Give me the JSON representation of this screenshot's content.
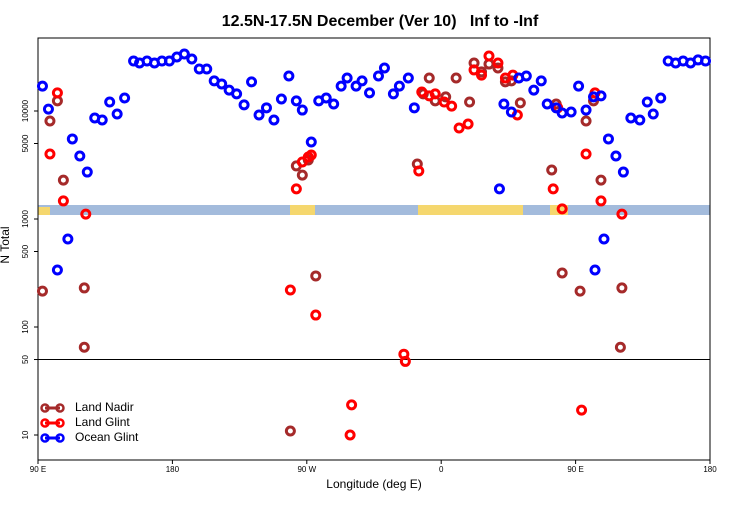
{
  "chart_data": {
    "type": "scatter",
    "title": "12.5N-17.5N December (Ver 10)   Inf to -Inf",
    "x_label": "Longitude (deg E)",
    "y_label": "N Total",
    "xlim": [
      90,
      540
    ],
    "ylim": [
      5.87,
      47400
    ],
    "log_y": true,
    "hline": 50,
    "legend": "lower left",
    "xticks": [
      {
        "value": 90,
        "label": "90 E"
      },
      180,
      {
        "value": 270,
        "label": "90 W"
      },
      {
        "value": 360,
        "label": "0"
      },
      {
        "value": 450,
        "label": "90 E"
      },
      {
        "value": 540,
        "label": "180"
      }
    ],
    "yticks": [
      10,
      50,
      100,
      500,
      1000,
      5000,
      10000
    ],
    "series": [
      {
        "name": "Land Nadir",
        "color": "#a52a2a",
        "x": [
          93,
          98,
          103,
          107,
          121,
          121,
          263,
          267,
          271,
          276,
          259,
          344,
          348,
          352,
          356,
          363,
          370,
          379,
          382,
          387,
          392,
          398,
          403,
          407,
          413,
          434,
          437,
          441,
          453,
          457,
          462,
          467,
          481,
          480
        ],
        "values": [
          215,
          8080,
          12400,
          2290,
          230,
          65,
          3100,
          2550,
          3520,
          297,
          10.9,
          3230,
          14400,
          20200,
          12400,
          13500,
          20200,
          12100,
          27800,
          23000,
          27200,
          25000,
          18600,
          19000,
          11900,
          2840,
          11600,
          316,
          215,
          8080,
          12400,
          2290,
          230,
          65
        ]
      },
      {
        "name": "Land Glint",
        "color": "#ff0000",
        "x": [
          98,
          103,
          107,
          122,
          263,
          267,
          271,
          273,
          345,
          347,
          352,
          356,
          362,
          367,
          372,
          378,
          382,
          387,
          392,
          398,
          403,
          408,
          411,
          438,
          435,
          441,
          457,
          463,
          467,
          481,
          259,
          276,
          335,
          336,
          300,
          299,
          454
        ],
        "values": [
          4000,
          14700,
          1470,
          1110,
          1900,
          3370,
          3750,
          3910,
          2780,
          15000,
          13800,
          14400,
          12100,
          11100,
          6960,
          7580,
          24000,
          21500,
          32300,
          27800,
          20200,
          21500,
          9180,
          10700,
          1900,
          1240,
          4000,
          14700,
          1470,
          1110,
          220,
          129,
          56,
          48,
          19,
          10,
          17
        ]
      },
      {
        "name": "Ocean Glint",
        "color": "#0000ff",
        "x": [
          93,
          97,
          113,
          118,
          123,
          128,
          133,
          138,
          143,
          148,
          154,
          158,
          163,
          168,
          173,
          178,
          183,
          188,
          193,
          198,
          203,
          208,
          213,
          218,
          223,
          228,
          233,
          238,
          243,
          248,
          253,
          258,
          263,
          267,
          273,
          278,
          283,
          288,
          293,
          297,
          303,
          307,
          312,
          318,
          322,
          328,
          332,
          338,
          342,
          399,
          402,
          407,
          412,
          417,
          422,
          427,
          431,
          437,
          441,
          447,
          452,
          457,
          462,
          467,
          472,
          477,
          482,
          487,
          493,
          498,
          502,
          507,
          512,
          517,
          522,
          527,
          532,
          537,
          103,
          110,
          463,
          469
        ],
        "values": [
          17000,
          10400,
          5510,
          3830,
          2720,
          8610,
          8260,
          12100,
          9380,
          13200,
          29000,
          27800,
          29000,
          27800,
          29000,
          29000,
          31600,
          33700,
          30300,
          24500,
          24500,
          19000,
          17800,
          15600,
          14400,
          11400,
          18600,
          9180,
          10700,
          8260,
          12900,
          21100,
          12400,
          10200,
          5160,
          12400,
          13200,
          11600,
          17000,
          20200,
          17000,
          19000,
          14700,
          21100,
          25000,
          14400,
          17000,
          20200,
          10700,
          1900,
          11600,
          9790,
          20200,
          21100,
          15600,
          19000,
          11600,
          10700,
          9580,
          9790,
          17000,
          10200,
          13500,
          13800,
          5510,
          3830,
          2720,
          8610,
          8260,
          12100,
          9380,
          13200,
          29000,
          27800,
          29000,
          27800,
          29700,
          29000,
          337,
          653,
          337,
          653
        ]
      }
    ]
  }
}
